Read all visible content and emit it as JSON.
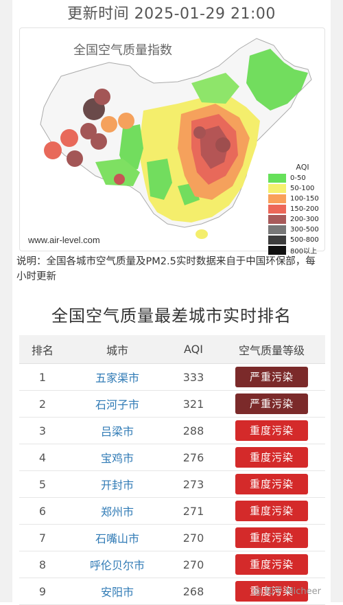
{
  "update_time": "更新时间 2025-01-29 21:00",
  "map": {
    "title": "全国空气质量指数",
    "source": "www.air-level.com",
    "legend": {
      "title": "AQI",
      "items": [
        {
          "label": "0-50",
          "color": "#66e05a"
        },
        {
          "label": "50-100",
          "color": "#f5f06e"
        },
        {
          "label": "100-150",
          "color": "#f9a05a"
        },
        {
          "label": "150-200",
          "color": "#ec6758"
        },
        {
          "label": "200-300",
          "color": "#a85a5a"
        },
        {
          "label": "300-500",
          "color": "#777777"
        },
        {
          "label": "500-800",
          "color": "#3d3d3d"
        },
        {
          "label": "800以上",
          "color": "#111111"
        }
      ]
    }
  },
  "note": "说明：全国各城市空气质量及PM2.5实时数据来自于中国环保部，每小时更新",
  "ranking": {
    "title": "全国空气质量最差城市实时排名",
    "headers": {
      "rank": "排名",
      "city": "城市",
      "aqi": "AQI",
      "level": "空气质量等级"
    },
    "level_colors": {
      "严重污染": "#7b2a2a",
      "重度污染": "#d42a2a"
    },
    "rows": [
      {
        "rank": "1",
        "city": "五家渠市",
        "aqi": "333",
        "level": "严重污染"
      },
      {
        "rank": "2",
        "city": "石河子市",
        "aqi": "321",
        "level": "严重污染"
      },
      {
        "rank": "3",
        "city": "吕梁市",
        "aqi": "288",
        "level": "重度污染"
      },
      {
        "rank": "4",
        "city": "宝鸡市",
        "aqi": "276",
        "level": "重度污染"
      },
      {
        "rank": "5",
        "city": "开封市",
        "aqi": "273",
        "level": "重度污染"
      },
      {
        "rank": "6",
        "city": "郑州市",
        "aqi": "271",
        "level": "重度污染"
      },
      {
        "rank": "7",
        "city": "石嘴山市",
        "aqi": "270",
        "level": "重度污染"
      },
      {
        "rank": "8",
        "city": "呼伦贝尔市",
        "aqi": "270",
        "level": "重度污染"
      },
      {
        "rank": "9",
        "city": "安阳市",
        "aqi": "268",
        "level": "重度污染"
      }
    ]
  },
  "watermark": "@ 知乎 Micheer"
}
